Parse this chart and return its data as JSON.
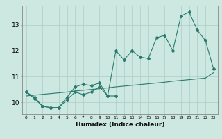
{
  "xlabel": "Humidex (Indice chaleur)",
  "x": [
    0,
    1,
    2,
    3,
    4,
    5,
    6,
    7,
    8,
    9,
    10,
    11,
    12,
    13,
    14,
    15,
    16,
    17,
    18,
    19,
    20,
    21,
    22,
    23
  ],
  "line_main": [
    10.4,
    10.2,
    9.85,
    9.8,
    9.8,
    10.2,
    10.6,
    10.7,
    10.65,
    10.75,
    10.25,
    12.0,
    11.65,
    12.0,
    11.75,
    11.7,
    12.5,
    12.6,
    12.0,
    13.35,
    13.5,
    12.8,
    12.4,
    11.3
  ],
  "line_low": [
    10.4,
    10.15,
    9.85,
    9.8,
    9.8,
    10.1,
    10.4,
    10.3,
    10.4,
    10.6,
    10.25,
    10.25,
    null,
    null,
    null,
    null,
    null,
    null,
    null,
    null,
    null,
    null,
    null,
    null
  ],
  "line_trend": [
    10.25,
    10.28,
    10.31,
    10.34,
    10.37,
    10.4,
    10.44,
    10.47,
    10.5,
    10.53,
    10.56,
    10.6,
    10.63,
    10.66,
    10.69,
    10.72,
    10.75,
    10.78,
    10.82,
    10.85,
    10.88,
    10.91,
    10.94,
    11.15
  ],
  "bg_color": "#cce8e0",
  "line_color": "#2a7a6e",
  "grid_color": "#aaccc4",
  "ylim": [
    9.55,
    13.75
  ],
  "yticks": [
    10,
    11,
    12,
    13
  ]
}
